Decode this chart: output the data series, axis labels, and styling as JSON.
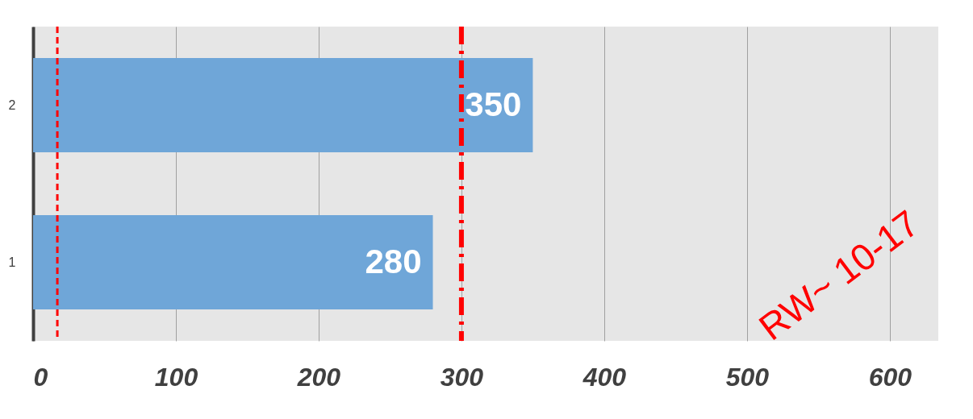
{
  "chart_data": {
    "type": "bar",
    "orientation": "horizontal",
    "categories": [
      "2",
      "1"
    ],
    "values": [
      350,
      280
    ],
    "color": "#6fa6d8",
    "xlim": [
      0,
      634
    ],
    "xticks": [
      0,
      100,
      200,
      300,
      400,
      500,
      600
    ],
    "grid": "x",
    "data_labels": true,
    "ref_lines": [
      {
        "axis": "x",
        "value": 17,
        "color": "#ff0000",
        "line_style": "dotted"
      },
      {
        "axis": "x",
        "value": 300,
        "color": "#ff0000",
        "line_style": "dashdot"
      }
    ],
    "annotations": [
      "RW~ 10-17"
    ]
  }
}
